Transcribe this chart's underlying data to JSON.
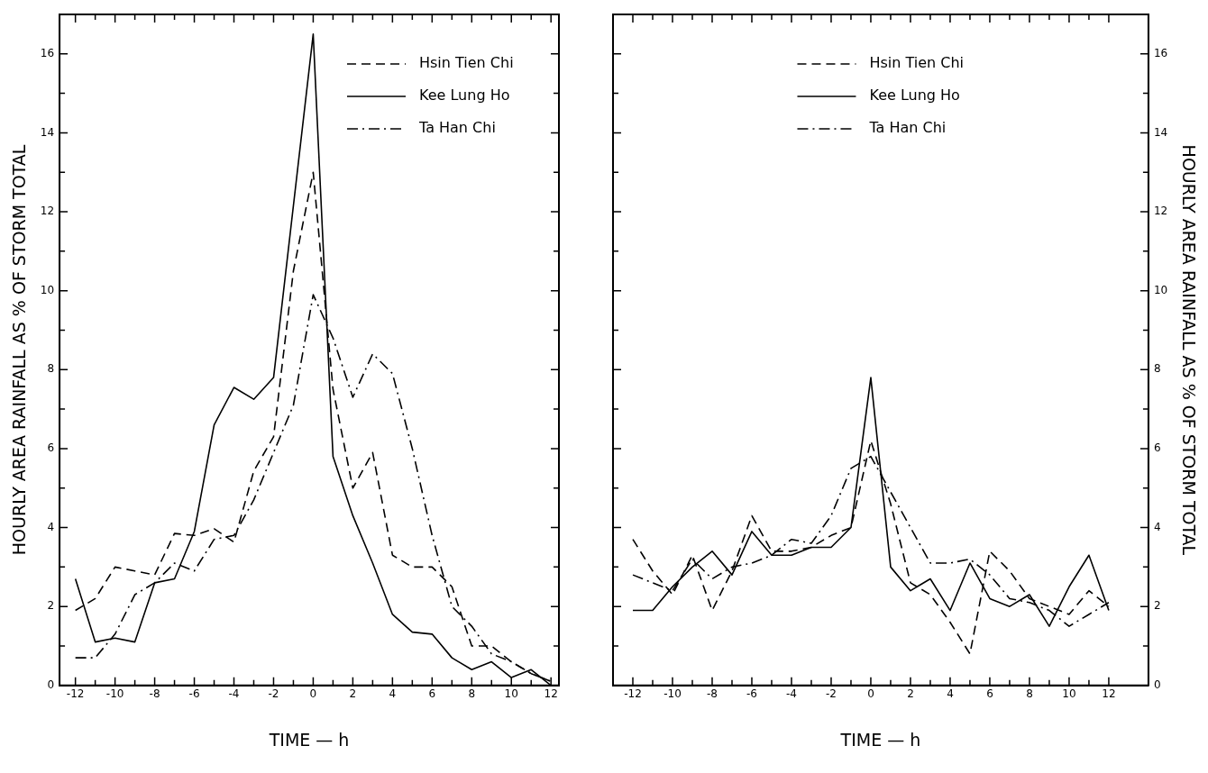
{
  "chart_data": [
    {
      "type": "line",
      "xlabel": "TIME — h",
      "ylabel": "HOURLY AREA RAINFALL AS % OF STORM TOTAL",
      "xlim": [
        -12.8,
        12.4
      ],
      "ylim": [
        0,
        17
      ],
      "xticks": [
        -12,
        {
          "value": -11,
          "label": null
        },
        -10,
        {
          "value": -9,
          "label": null
        },
        -8,
        {
          "value": -7,
          "label": null
        },
        -6,
        {
          "value": -5,
          "label": null
        },
        -4,
        {
          "value": -3,
          "label": null
        },
        -2,
        {
          "value": -1,
          "label": null
        },
        0,
        {
          "value": 1,
          "label": null
        },
        2,
        {
          "value": 3,
          "label": null
        },
        4,
        {
          "value": 5,
          "label": null
        },
        6,
        {
          "value": 7,
          "label": null
        },
        8,
        {
          "value": 9,
          "label": null
        },
        10,
        {
          "value": 11,
          "label": null
        },
        12
      ],
      "yticks": [
        0,
        {
          "value": 1,
          "label": null
        },
        2,
        {
          "value": 3,
          "label": null
        },
        4,
        {
          "value": 5,
          "label": null
        },
        6,
        {
          "value": 7,
          "label": null
        },
        8,
        {
          "value": 9,
          "label": null
        },
        10,
        {
          "value": 11,
          "label": null
        },
        12,
        {
          "value": 13,
          "label": null
        },
        14,
        {
          "value": 15,
          "label": null
        },
        16
      ],
      "grid": false,
      "legend": "top right",
      "marker": "none",
      "x": [
        -12,
        -11,
        -10,
        -9,
        -8,
        -7,
        -6,
        -5,
        -4,
        -3,
        -2,
        -1,
        0,
        1,
        2,
        3,
        4,
        5,
        6,
        7,
        8,
        9,
        10,
        11,
        12
      ],
      "series": [
        {
          "name": "Hsin Tien Chi",
          "color": "#000000",
          "line_style": "dashed",
          "values": [
            1.9,
            2.2,
            3.0,
            2.9,
            2.8,
            3.85,
            3.8,
            3.97,
            3.63,
            5.43,
            6.3,
            10.5,
            13.0,
            7.5,
            5.0,
            5.9,
            3.3,
            3.0,
            3.0,
            2.5,
            1.0,
            1.0,
            0.6,
            0.3,
            0.1
          ]
        },
        {
          "name": "Kee Lung Ho",
          "color": "#000000",
          "line_style": "solid",
          "x": [
            -12,
            -11,
            -10,
            -9,
            -8,
            -7,
            -6,
            -5,
            -4,
            -3,
            -2,
            0,
            1,
            2,
            3,
            4,
            5,
            6,
            7,
            8,
            9,
            10,
            11,
            12
          ],
          "values": [
            2.7,
            1.1,
            1.2,
            1.1,
            2.6,
            2.7,
            3.9,
            6.6,
            7.55,
            7.25,
            7.8,
            16.5,
            5.8,
            4.3,
            3.1,
            1.8,
            1.35,
            1.3,
            0.7,
            0.4,
            0.6,
            0.2,
            0.4,
            0.0
          ]
        },
        {
          "name": "Ta Han Chi",
          "color": "#000000",
          "line_style": "dashdot",
          "values": [
            0.7,
            0.7,
            1.3,
            2.3,
            2.6,
            3.1,
            2.9,
            3.7,
            3.8,
            4.7,
            5.9,
            7.1,
            9.9,
            8.8,
            7.3,
            8.4,
            7.9,
            6.0,
            3.8,
            2.0,
            1.5,
            0.8,
            0.6,
            0.3,
            0.1
          ]
        }
      ]
    },
    {
      "type": "line",
      "xlabel": "TIME — h",
      "y2label": "HOURLY AREA RAINFALL AS % OF STORM TOTAL",
      "xlim": [
        -13,
        14
      ],
      "y2lim": [
        0,
        17
      ],
      "xticks": [
        -12,
        {
          "value": -11,
          "label": null
        },
        -10,
        {
          "value": -9,
          "label": null
        },
        -8,
        {
          "value": -7,
          "label": null
        },
        -6,
        {
          "value": -5,
          "label": null
        },
        -4,
        {
          "value": -3,
          "label": null
        },
        -2,
        {
          "value": -1,
          "label": null
        },
        0,
        {
          "value": 1,
          "label": null
        },
        2,
        {
          "value": 3,
          "label": null
        },
        4,
        {
          "value": 5,
          "label": null
        },
        6,
        {
          "value": 7,
          "label": null
        },
        8,
        {
          "value": 9,
          "label": null
        },
        10,
        {
          "value": 11,
          "label": null
        },
        12
      ],
      "y2ticks": [
        0,
        {
          "value": 1,
          "label": null
        },
        2,
        {
          "value": 3,
          "label": null
        },
        4,
        {
          "value": 5,
          "label": null
        },
        6,
        {
          "value": 7,
          "label": null
        },
        8,
        {
          "value": 9,
          "label": null
        },
        10,
        {
          "value": 11,
          "label": null
        },
        12,
        {
          "value": 13,
          "label": null
        },
        14,
        {
          "value": 15,
          "label": null
        },
        16
      ],
      "grid": false,
      "legend": "top",
      "marker": "none",
      "x": [
        -12,
        -11,
        -10,
        -9,
        -8,
        -7,
        -6,
        -5,
        -4,
        -3,
        -2,
        -1,
        0,
        1,
        2,
        3,
        4,
        5,
        6,
        7,
        8,
        9,
        10,
        11,
        12
      ],
      "series": [
        {
          "name": "Hsin Tien Chi",
          "color": "#000000",
          "line_style": "dashed",
          "axis": "y2",
          "values": [
            3.7,
            2.9,
            2.3,
            3.3,
            1.9,
            2.9,
            4.3,
            3.4,
            3.4,
            3.5,
            3.8,
            4.0,
            6.2,
            4.6,
            2.6,
            2.3,
            1.6,
            0.8,
            3.4,
            2.9,
            2.2,
            2.0,
            1.8,
            2.4,
            2.0
          ]
        },
        {
          "name": "Kee Lung Ho",
          "color": "#000000",
          "line_style": "solid",
          "axis": "y2",
          "values": [
            1.9,
            1.9,
            2.5,
            3.0,
            3.4,
            2.8,
            3.9,
            3.3,
            3.3,
            3.5,
            3.5,
            4.0,
            7.8,
            3.0,
            2.4,
            2.7,
            1.9,
            3.1,
            2.2,
            2.0,
            2.3,
            1.5,
            2.5,
            3.3,
            1.9
          ]
        },
        {
          "name": "Ta Han Chi",
          "color": "#000000",
          "line_style": "dashdot",
          "axis": "y2",
          "values": [
            2.8,
            2.6,
            2.4,
            3.2,
            2.7,
            3.0,
            3.1,
            3.3,
            3.7,
            3.6,
            4.3,
            5.5,
            5.8,
            4.9,
            4.0,
            3.1,
            3.1,
            3.2,
            2.8,
            2.2,
            2.1,
            1.9,
            1.5,
            1.8,
            2.1
          ]
        }
      ]
    }
  ]
}
